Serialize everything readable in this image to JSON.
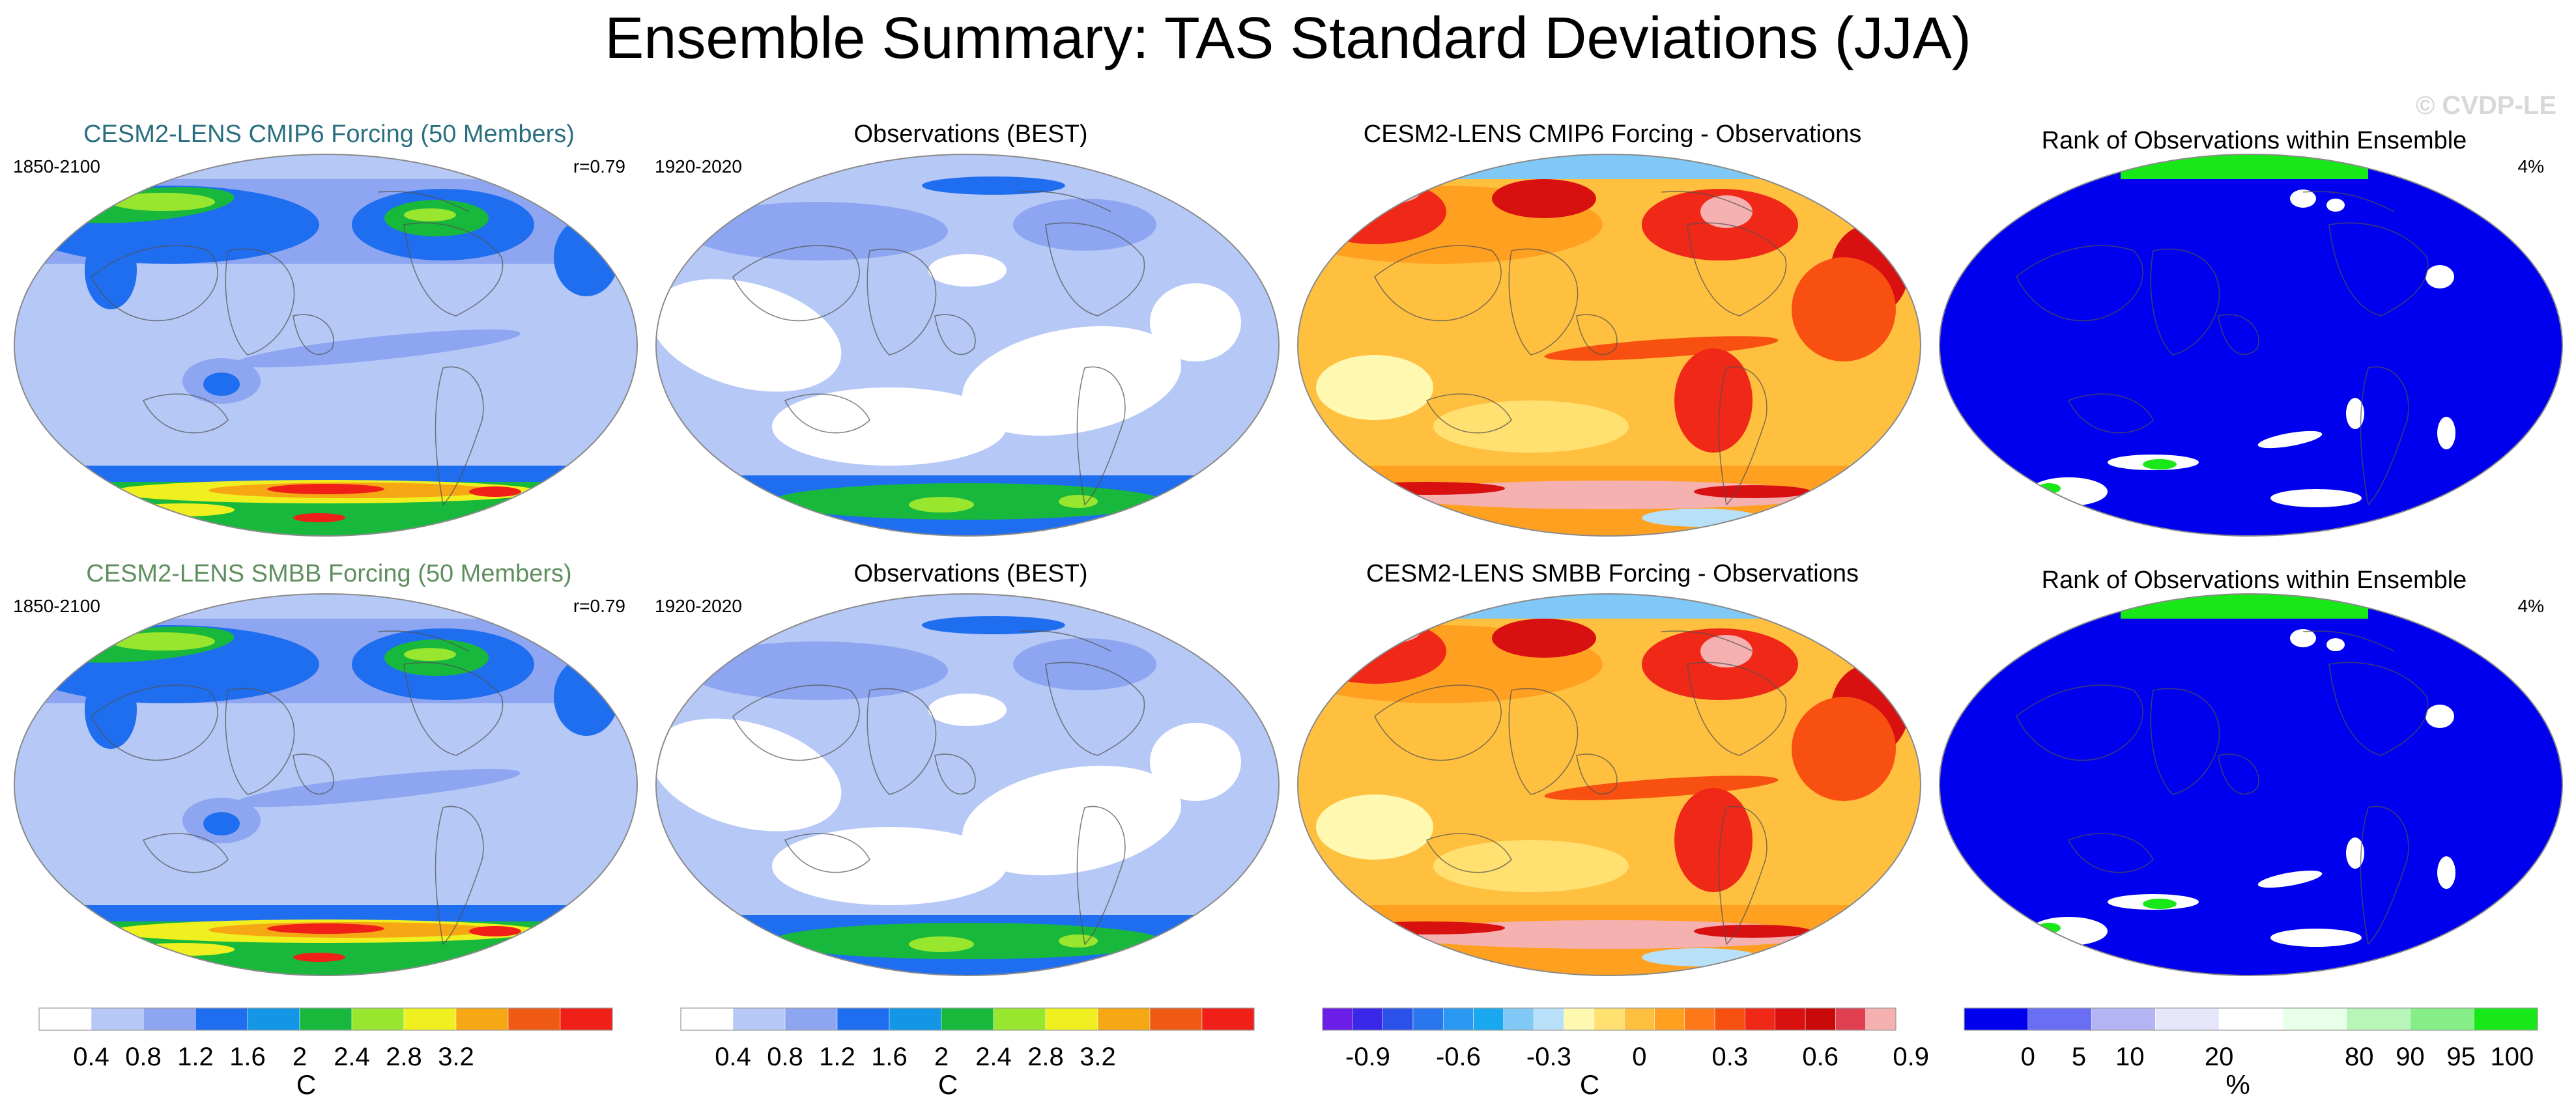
{
  "title": "Ensemble Summary: TAS Standard Deviations (JJA)",
  "watermark": "© CVDP-LE",
  "colors": {
    "title_teal": "#2a6f80",
    "title_green": "#5f8f5f",
    "sd_scale": [
      "#ffffff",
      "#b6c8f5",
      "#8ea6f2",
      "#1f6ef0",
      "#1496e6",
      "#18b83c",
      "#99e62e",
      "#f0f020",
      "#f5a714",
      "#ef5a14",
      "#f02018"
    ],
    "diff_scale": [
      "#6a1ee8",
      "#3a28e8",
      "#2a52e8",
      "#2a76ee",
      "#2a98f0",
      "#1aa9f0",
      "#80c8f5",
      "#b8e0f8",
      "#fff8b0",
      "#ffe070",
      "#ffc040",
      "#ffa020",
      "#ff7818",
      "#f85010",
      "#f02818",
      "#d81010",
      "#c80a0a",
      "#e04050",
      "#f5b0b0"
    ],
    "rank_scale": [
      "#0000ee",
      "#6a6ef2",
      "#b4b4f5",
      "#e6e6fa",
      "#ffffff",
      "#e8ffe8",
      "#b8f5b8",
      "#86ee86",
      "#18e818"
    ]
  },
  "panels": [
    {
      "title": "CESM2-LENS CMIP6 Forcing (50 Members)",
      "left": "1850-2100",
      "right": "r=0.79",
      "kind": "model"
    },
    {
      "title": "Observations (BEST)",
      "left": "1920-2020",
      "right": "",
      "kind": "obs"
    },
    {
      "title": "CESM2-LENS CMIP6 Forcing - Observations",
      "left": "",
      "right": "",
      "kind": "diff"
    },
    {
      "title": "Rank of Observations within Ensemble",
      "left": "",
      "right": "4%",
      "kind": "rank"
    },
    {
      "title": "CESM2-LENS SMBB Forcing (50 Members)",
      "left": "1850-2100",
      "right": "r=0.79",
      "kind": "model"
    },
    {
      "title": "Observations (BEST)",
      "left": "1920-2020",
      "right": "",
      "kind": "obs"
    },
    {
      "title": "CESM2-LENS SMBB Forcing - Observations",
      "left": "",
      "right": "",
      "kind": "diff"
    },
    {
      "title": "Rank of Observations within Ensemble",
      "left": "",
      "right": "4%",
      "kind": "rank"
    }
  ],
  "colorbars": [
    {
      "unit": "C",
      "ticks": [
        "0.4",
        "0.8",
        "1.2",
        "1.6",
        "2",
        "2.4",
        "2.8",
        "3.2"
      ]
    },
    {
      "unit": "C",
      "ticks": [
        "0.4",
        "0.8",
        "1.2",
        "1.6",
        "2",
        "2.4",
        "2.8",
        "3.2"
      ]
    },
    {
      "unit": "C",
      "ticks": [
        "-0.9",
        "-0.6",
        "-0.3",
        "0",
        "0.3",
        "0.6",
        "0.9"
      ]
    },
    {
      "unit": "%",
      "ticks": [
        "0",
        "5",
        "10",
        "20",
        "80",
        "90",
        "95",
        "100"
      ]
    }
  ],
  "chart_data": [
    {
      "type": "heatmap",
      "title": "CESM2-LENS CMIP6 Forcing (50 Members)",
      "annotations": [
        "1850-2100",
        "r=0.79"
      ],
      "colorbar_unit": "C",
      "colorbar_ticks": [
        0.4,
        0.8,
        1.2,
        1.6,
        2,
        2.4,
        2.8,
        3.2
      ]
    },
    {
      "type": "heatmap",
      "title": "Observations (BEST)",
      "annotations": [
        "1920-2020"
      ],
      "colorbar_unit": "C",
      "colorbar_ticks": [
        0.4,
        0.8,
        1.2,
        1.6,
        2,
        2.4,
        2.8,
        3.2
      ]
    },
    {
      "type": "heatmap",
      "title": "CESM2-LENS CMIP6 Forcing - Observations",
      "colorbar_unit": "C",
      "colorbar_ticks": [
        -0.9,
        -0.6,
        -0.3,
        0,
        0.3,
        0.6,
        0.9
      ]
    },
    {
      "type": "heatmap",
      "title": "Rank of Observations within Ensemble",
      "annotations": [
        "4%"
      ],
      "colorbar_unit": "%",
      "colorbar_ticks": [
        0,
        5,
        10,
        20,
        80,
        90,
        95,
        100
      ]
    },
    {
      "type": "heatmap",
      "title": "CESM2-LENS SMBB Forcing (50 Members)",
      "annotations": [
        "1850-2100",
        "r=0.79"
      ],
      "colorbar_unit": "C",
      "colorbar_ticks": [
        0.4,
        0.8,
        1.2,
        1.6,
        2,
        2.4,
        2.8,
        3.2
      ]
    },
    {
      "type": "heatmap",
      "title": "Observations (BEST)",
      "annotations": [
        "1920-2020"
      ],
      "colorbar_unit": "C",
      "colorbar_ticks": [
        0.4,
        0.8,
        1.2,
        1.6,
        2,
        2.4,
        2.8,
        3.2
      ]
    },
    {
      "type": "heatmap",
      "title": "CESM2-LENS SMBB Forcing - Observations",
      "colorbar_unit": "C",
      "colorbar_ticks": [
        -0.9,
        -0.6,
        -0.3,
        0,
        0.3,
        0.6,
        0.9
      ]
    },
    {
      "type": "heatmap",
      "title": "Rank of Observations within Ensemble",
      "annotations": [
        "4%"
      ],
      "colorbar_unit": "%",
      "colorbar_ticks": [
        0,
        5,
        10,
        20,
        80,
        90,
        95,
        100
      ]
    }
  ]
}
